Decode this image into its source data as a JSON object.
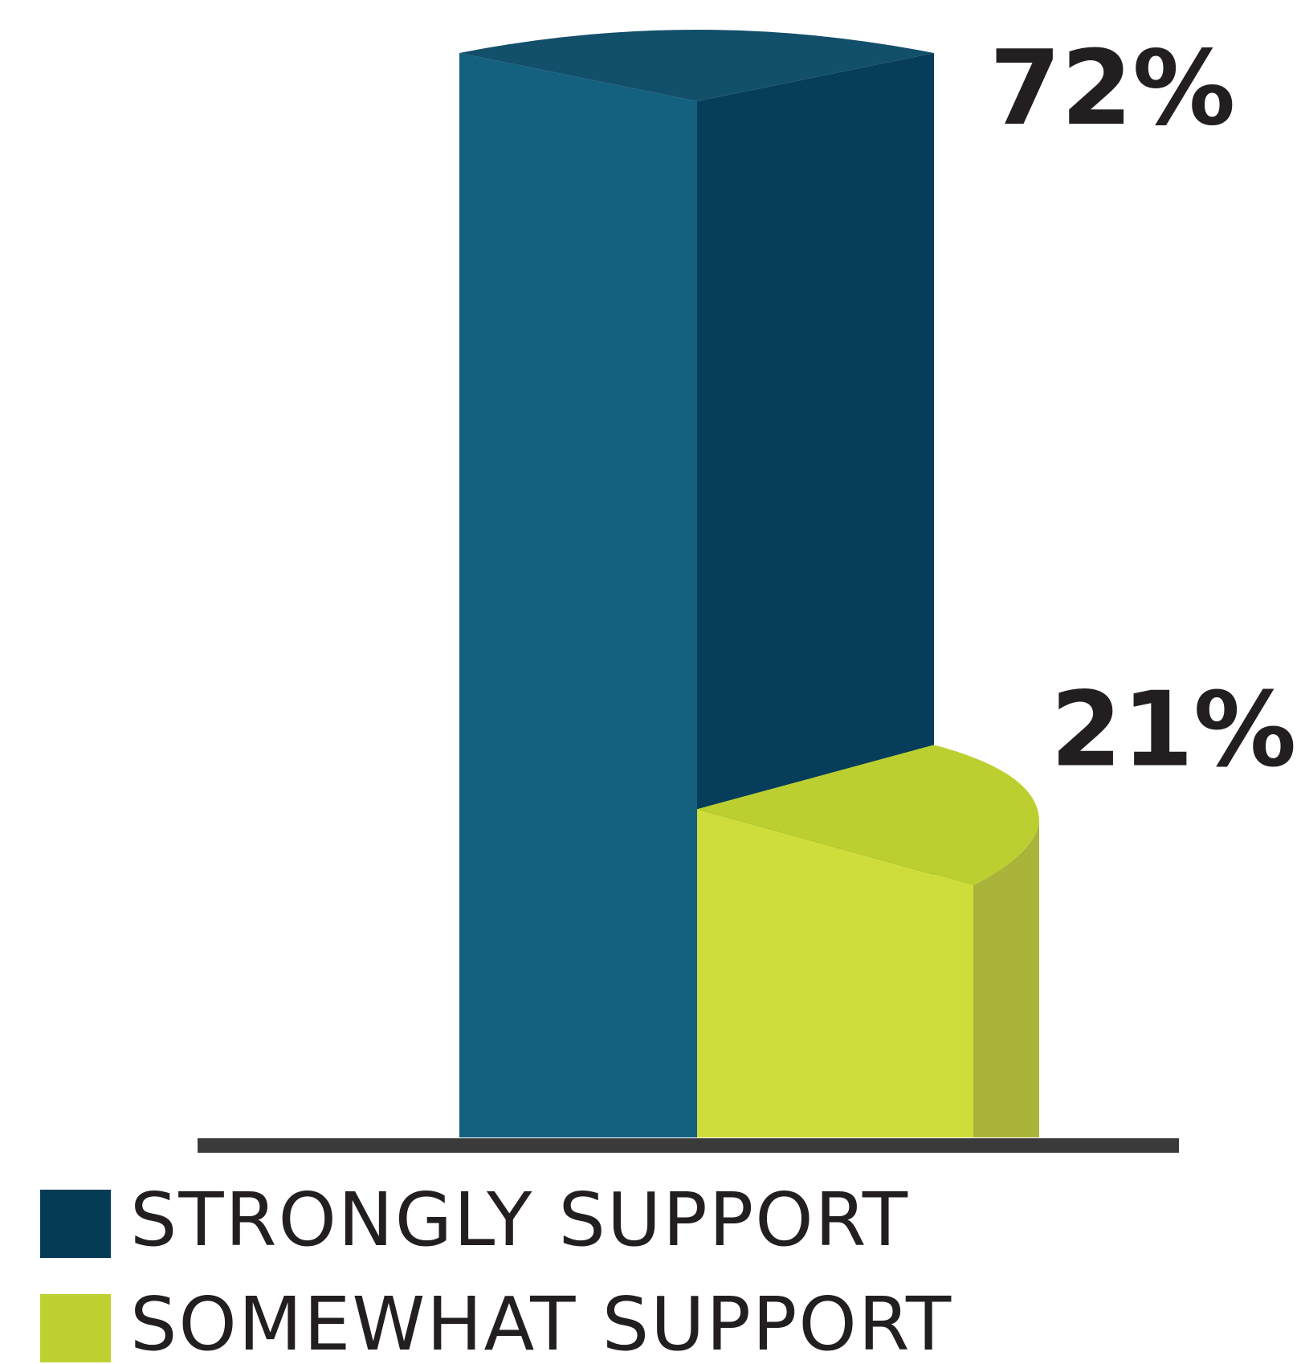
{
  "chart_data": {
    "type": "bar",
    "title": "",
    "xlabel": "",
    "ylabel": "",
    "ylim": [
      0,
      72
    ],
    "grid": false,
    "legend_position": "bottom-left",
    "series": [
      {
        "name": "STRONGLY SUPPORT",
        "value": 72,
        "label": "72%",
        "color": "#14617f"
      },
      {
        "name": "SOMEWHAT SUPPORT",
        "value": 21,
        "label": "21%",
        "color": "#cfdd3a"
      }
    ]
  },
  "legend": {
    "items": [
      {
        "label": "STRONGLY SUPPORT",
        "swatch_color": "#063b56"
      },
      {
        "label": "SOMEWHAT SUPPORT",
        "swatch_color": "#bfd132"
      }
    ]
  }
}
